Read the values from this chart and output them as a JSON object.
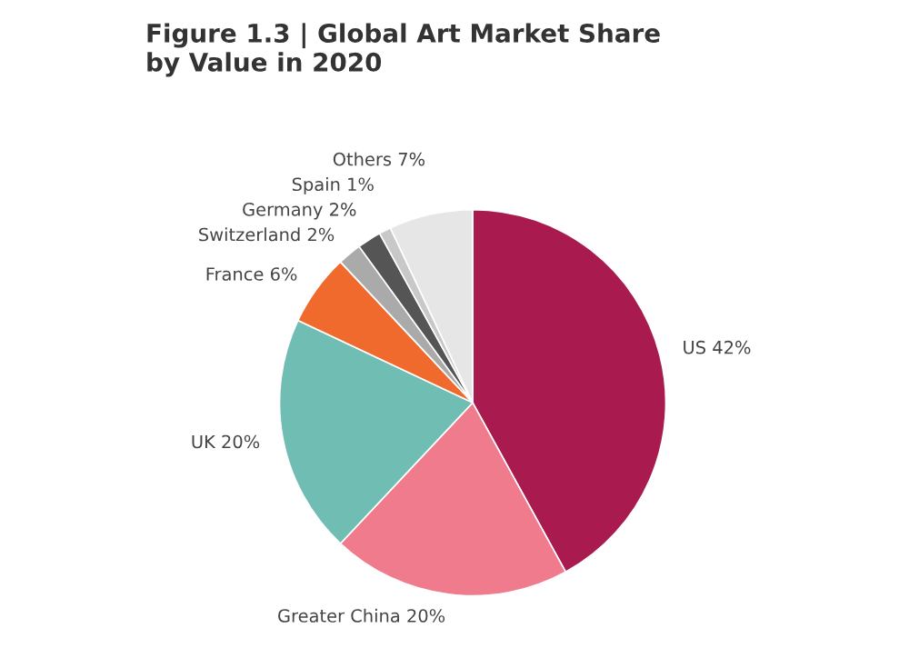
{
  "chart_data": {
    "type": "pie",
    "title": "Figure 1.3 | Global Art Market Share\nby Value in 2020",
    "categories": [
      "US",
      "Greater China",
      "UK",
      "France",
      "Switzerland",
      "Germany",
      "Spain",
      "Others"
    ],
    "values": [
      42,
      20,
      20,
      6,
      2,
      2,
      1,
      7
    ],
    "value_labels": [
      "42%",
      "20%",
      "20%",
      "6%",
      "2%",
      "2%",
      "1%",
      "7%"
    ],
    "colors": [
      "#a91a4f",
      "#ef7b8c",
      "#6fbdb3",
      "#f06a2e",
      "#aaaaaa",
      "#555555",
      "#c8c8c8",
      "#e6e6e6"
    ]
  }
}
